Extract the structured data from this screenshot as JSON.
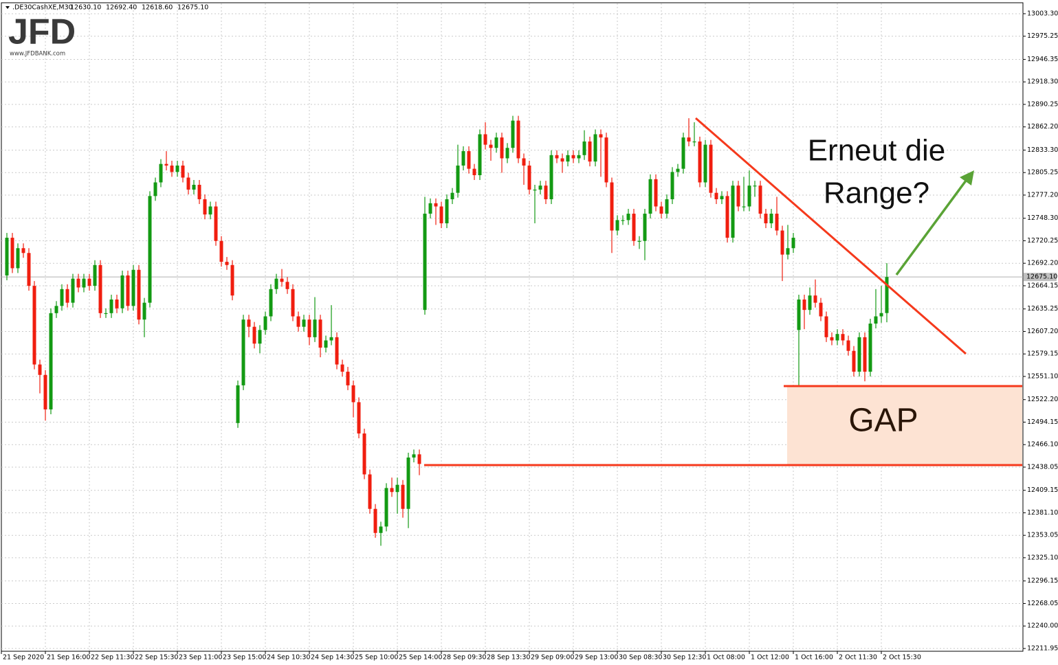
{
  "logo": {
    "brand": "JFD",
    "url": "www.JFDBANK.com"
  },
  "chart_data": {
    "type": "candlestick",
    "symbol": ".DE30CashXE,M30",
    "header_values": [
      "12630.10",
      "12692.40",
      "12618.60",
      "12675.10"
    ],
    "x_labels": [
      "21 Sep 2020",
      "21 Sep 16:00",
      "22 Sep 11:30",
      "22 Sep 15:30",
      "23 Sep 11:00",
      "23 Sep 15:00",
      "24 Sep 10:30",
      "24 Sep 14:30",
      "25 Sep 10:00",
      "25 Sep 14:00",
      "28 Sep 09:30",
      "28 Sep 13:30",
      "29 Sep 09:00",
      "29 Sep 13:00",
      "30 Sep 08:30",
      "30 Sep 12:30",
      "1 Oct 08:00",
      "1 Oct 12:00",
      "1 Oct 16:00",
      "2 Oct 11:30",
      "2 Oct 15:30"
    ],
    "open": [
      12677,
      12724,
      12686,
      12711,
      12705,
      12664,
      12566,
      12553,
      12510,
      12630,
      12639,
      12660,
      12643,
      12673,
      12662,
      12673,
      12664,
      12690,
      12630,
      12630,
      12647,
      12636,
      12677,
      12639,
      12684,
      12622,
      12643,
      12776,
      12793,
      12816,
      12814,
      12806,
      12814,
      12799,
      12784,
      12790,
      12772,
      12753,
      12763,
      12720,
      12694,
      12690,
      12493,
      12540,
      12622,
      12613,
      12592,
      12609,
      12626,
      12660,
      12673,
      12669,
      12660,
      12626,
      12613,
      12622,
      12600,
      12622,
      12587,
      12596,
      12600,
      12566,
      12557,
      12540,
      12519,
      12480,
      12429,
      12386,
      12356,
      12364,
      12412,
      12407,
      12416,
      12386,
      12450,
      12454,
      12634,
      12754,
      12767,
      12763,
      12742,
      12772,
      12780,
      12814,
      12832,
      12810,
      12802,
      12853,
      12840,
      12836,
      12849,
      12823,
      12836,
      12870,
      12823,
      12814,
      12784,
      12784,
      12789,
      12772,
      12827,
      12823,
      12819,
      12827,
      12823,
      12827,
      12844,
      12819,
      12853,
      12849,
      12793,
      12733,
      12746,
      12746,
      12754,
      12720,
      12720,
      12754,
      12797,
      12763,
      12754,
      12772,
      12806,
      12810,
      12849,
      12844,
      12844,
      12793,
      12840,
      12780,
      12772,
      12776,
      12724,
      12789,
      12763,
      12763,
      12789,
      12789,
      12754,
      12742,
      12754,
      12733,
      12703,
      12711,
      12609,
      12647,
      12634,
      12652,
      12643,
      12626,
      12600,
      12596,
      12604,
      12596,
      12583,
      12557,
      12600,
      12557,
      12617,
      12626,
      12630.1
    ],
    "high": [
      12730,
      12730,
      12717,
      12717,
      12711,
      12670,
      12572,
      12559,
      12636,
      12645,
      12666,
      12666,
      12679,
      12679,
      12679,
      12679,
      12696,
      12696,
      12636,
      12653,
      12653,
      12683,
      12683,
      12690,
      12690,
      12649,
      12782,
      12799,
      12822,
      12832,
      12820,
      12820,
      12820,
      12805,
      12796,
      12796,
      12778,
      12769,
      12769,
      12726,
      12700,
      12696,
      12546,
      12628,
      12628,
      12619,
      12615,
      12632,
      12666,
      12679,
      12685,
      12675,
      12666,
      12632,
      12628,
      12628,
      12650,
      12628,
      12602,
      12640,
      12606,
      12572,
      12563,
      12546,
      12525,
      12486,
      12435,
      12392,
      12370,
      12418,
      12425,
      12425,
      12422,
      12456,
      12460,
      12460,
      12775,
      12773,
      12773,
      12769,
      12778,
      12786,
      12840,
      12838,
      12838,
      12816,
      12859,
      12868,
      12846,
      12855,
      12855,
      12842,
      12876,
      12876,
      12829,
      12820,
      12790,
      12795,
      12795,
      12833,
      12833,
      12829,
      12833,
      12833,
      12833,
      12858,
      12850,
      12859,
      12859,
      12855,
      12799,
      12752,
      12752,
      12760,
      12760,
      12726,
      12760,
      12803,
      12803,
      12769,
      12778,
      12812,
      12816,
      12855,
      12873,
      12868,
      12850,
      12846,
      12846,
      12786,
      12782,
      12782,
      12795,
      12795,
      12800,
      12808,
      12795,
      12795,
      12760,
      12760,
      12775,
      12739,
      12740,
      12730,
      12653,
      12653,
      12662,
      12672,
      12649,
      12632,
      12606,
      12610,
      12610,
      12602,
      12589,
      12606,
      12606,
      12623,
      12660,
      12664,
      12692.4
    ],
    "low": [
      12671,
      12680,
      12680,
      12699,
      12658,
      12560,
      12530,
      12496,
      12504,
      12624,
      12633,
      12637,
      12637,
      12656,
      12656,
      12658,
      12658,
      12624,
      12624,
      12624,
      12630,
      12630,
      12633,
      12633,
      12616,
      12600,
      12637,
      12770,
      12787,
      12808,
      12800,
      12800,
      12793,
      12778,
      12778,
      12766,
      12747,
      12747,
      12714,
      12688,
      12684,
      12646,
      12487,
      12534,
      12600,
      12586,
      12580,
      12603,
      12620,
      12654,
      12663,
      12654,
      12620,
      12607,
      12607,
      12590,
      12594,
      12575,
      12581,
      12590,
      12560,
      12551,
      12534,
      12500,
      12474,
      12423,
      12380,
      12350,
      12340,
      12358,
      12401,
      12380,
      12375,
      12362,
      12444,
      12428,
      12628,
      12748,
      12740,
      12736,
      12736,
      12766,
      12774,
      12808,
      12804,
      12796,
      12796,
      12834,
      12820,
      12830,
      12805,
      12817,
      12830,
      12817,
      12790,
      12778,
      12742,
      12778,
      12766,
      12766,
      12817,
      12805,
      12813,
      12817,
      12817,
      12821,
      12813,
      12813,
      12800,
      12787,
      12705,
      12727,
      12740,
      12740,
      12714,
      12710,
      12696,
      12748,
      12757,
      12748,
      12748,
      12766,
      12800,
      12804,
      12838,
      12838,
      12787,
      12787,
      12774,
      12766,
      12766,
      12718,
      12718,
      12757,
      12757,
      12757,
      12775,
      12748,
      12736,
      12736,
      12727,
      12670,
      12697,
      12705,
      12540,
      12610,
      12628,
      12637,
      12620,
      12594,
      12590,
      12590,
      12590,
      12577,
      12551,
      12551,
      12545,
      12551,
      12611,
      12618,
      12618.6
    ],
    "close": [
      12724,
      12686,
      12711,
      12705,
      12664,
      12566,
      12553,
      12510,
      12630,
      12639,
      12660,
      12643,
      12673,
      12662,
      12673,
      12664,
      12690,
      12630,
      12630,
      12647,
      12636,
      12677,
      12639,
      12684,
      12622,
      12643,
      12776,
      12793,
      12816,
      12814,
      12806,
      12814,
      12799,
      12784,
      12790,
      12772,
      12753,
      12763,
      12720,
      12694,
      12690,
      12652,
      12540,
      12622,
      12613,
      12592,
      12609,
      12626,
      12660,
      12673,
      12669,
      12660,
      12626,
      12613,
      12622,
      12600,
      12622,
      12587,
      12596,
      12600,
      12566,
      12557,
      12540,
      12519,
      12480,
      12429,
      12386,
      12356,
      12364,
      12412,
      12407,
      12416,
      12386,
      12450,
      12454,
      12442,
      12754,
      12767,
      12763,
      12742,
      12772,
      12780,
      12814,
      12832,
      12810,
      12802,
      12853,
      12840,
      12836,
      12849,
      12823,
      12836,
      12870,
      12823,
      12814,
      12784,
      12784,
      12789,
      12772,
      12827,
      12823,
      12819,
      12827,
      12823,
      12827,
      12844,
      12819,
      12853,
      12849,
      12793,
      12733,
      12746,
      12746,
      12754,
      12720,
      12720,
      12754,
      12797,
      12763,
      12754,
      12772,
      12806,
      12810,
      12849,
      12844,
      12844,
      12793,
      12840,
      12780,
      12772,
      12776,
      12724,
      12789,
      12763,
      12763,
      12789,
      12789,
      12754,
      12742,
      12754,
      12733,
      12703,
      12711,
      12724,
      12647,
      12634,
      12652,
      12643,
      12626,
      12600,
      12596,
      12604,
      12596,
      12583,
      12557,
      12600,
      12557,
      12617,
      12626,
      12630.1,
      12675.1
    ],
    "up_color": "#139a13",
    "down_color": "#f01e0f",
    "current_price": {
      "value": 12675.1,
      "label": "12675.10"
    },
    "ylim": [
      12208.5,
      13016.1
    ],
    "yticks": [
      {
        "value": 13003.3,
        "label": "13003.30"
      },
      {
        "value": 12975.25,
        "label": "12975.25"
      },
      {
        "value": 12946.35,
        "label": "12946.35"
      },
      {
        "value": 12918.3,
        "label": "12918.30"
      },
      {
        "value": 12890.25,
        "label": "12890.25"
      },
      {
        "value": 12862.2,
        "label": "12862.20"
      },
      {
        "value": 12833.3,
        "label": "12833.30"
      },
      {
        "value": 12805.25,
        "label": "12805.25"
      },
      {
        "value": 12777.2,
        "label": "12777.20"
      },
      {
        "value": 12748.3,
        "label": "12748.30"
      },
      {
        "value": 12720.25,
        "label": "12720.25"
      },
      {
        "value": 12692.2,
        "label": "12692.20"
      },
      {
        "value": 12664.15,
        "label": "12664.15"
      },
      {
        "value": 12635.25,
        "label": "12635.25"
      },
      {
        "value": 12607.2,
        "label": "12607.20"
      },
      {
        "value": 12579.15,
        "label": "12579.15"
      },
      {
        "value": 12551.1,
        "label": "12551.10"
      },
      {
        "value": 12522.2,
        "label": "12522.20"
      },
      {
        "value": 12494.15,
        "label": "12494.15"
      },
      {
        "value": 12466.1,
        "label": "12466.10"
      },
      {
        "value": 12438.05,
        "label": "12438.05"
      },
      {
        "value": 12409.15,
        "label": "12409.15"
      },
      {
        "value": 12381.1,
        "label": "12381.10"
      },
      {
        "value": 12353.05,
        "label": "12353.05"
      },
      {
        "value": 12325.1,
        "label": "12325.10"
      },
      {
        "value": 12296.15,
        "label": "12296.15"
      },
      {
        "value": 12268.05,
        "label": "12268.05"
      },
      {
        "value": 12240,
        "label": "12240.00"
      },
      {
        "value": 12211.95,
        "label": "12211.95"
      }
    ],
    "grid": true,
    "annotations": {
      "question": [
        "Erneut die",
        "Range?"
      ],
      "gap": "GAP"
    }
  }
}
